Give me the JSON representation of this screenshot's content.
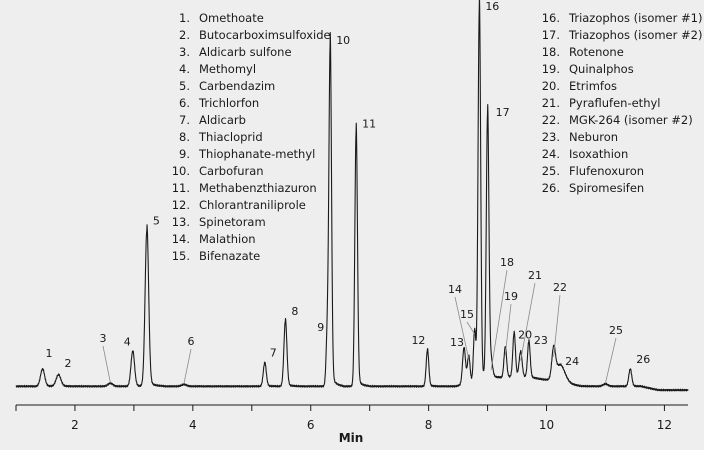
{
  "chart_data": {
    "type": "line",
    "xlabel": "Min",
    "ylabel": "",
    "xlim": [
      1,
      12.4
    ],
    "ylim": [
      0,
      100
    ],
    "x_ticks": [
      2,
      4,
      6,
      8,
      10,
      12
    ],
    "colors": {
      "background": "#eeeeef",
      "trace": "#1a1a1a",
      "axis": "#1a1a1a",
      "leader": "#8a8a8a"
    },
    "baseline": 1.5,
    "peaks": [
      {
        "id": "1",
        "x": 1.45,
        "height": 4.5,
        "width": 0.035
      },
      {
        "id": "2",
        "x": 1.72,
        "height": 3.0,
        "width": 0.04
      },
      {
        "id": "3",
        "x": 2.6,
        "height": 0.8,
        "width": 0.04
      },
      {
        "id": "4",
        "x": 2.98,
        "height": 9.2,
        "width": 0.03
      },
      {
        "id": "5",
        "x": 3.22,
        "height": 41.0,
        "width": 0.03
      },
      {
        "id": "6",
        "x": 3.85,
        "height": 0.5,
        "width": 0.04
      },
      {
        "id": "7",
        "x": 5.22,
        "height": 6.2,
        "width": 0.025
      },
      {
        "id": "8",
        "x": 5.57,
        "height": 17.2,
        "width": 0.025
      },
      {
        "id": "9",
        "x": 6.28,
        "height": 13.0,
        "width": 0.02
      },
      {
        "id": "10",
        "x": 6.33,
        "height": 89.0,
        "width": 0.022
      },
      {
        "id": "11",
        "x": 6.77,
        "height": 67.0,
        "width": 0.022
      },
      {
        "id": "12",
        "x": 7.98,
        "height": 9.5,
        "width": 0.022
      },
      {
        "id": "13",
        "x": 8.6,
        "height": 9.5,
        "width": 0.025
      },
      {
        "id": "14",
        "x": 8.68,
        "height": 7.0,
        "width": 0.022
      },
      {
        "id": "15",
        "x": 8.78,
        "height": 13.5,
        "width": 0.02
      },
      {
        "id": "16",
        "x": 8.86,
        "height": 98.0,
        "width": 0.022
      },
      {
        "id": "17",
        "x": 9.0,
        "height": 69.5,
        "width": 0.022
      },
      {
        "id": "18",
        "x": 9.06,
        "height": 4.0,
        "width": 0.025
      },
      {
        "id": "19",
        "x": 9.3,
        "height": 8.0,
        "width": 0.022
      },
      {
        "id": "20",
        "x": 9.45,
        "height": 11.5,
        "width": 0.022
      },
      {
        "id": "21",
        "x": 9.56,
        "height": 6.5,
        "width": 0.025
      },
      {
        "id": "22",
        "x": 10.12,
        "height": 7.5,
        "width": 0.03
      },
      {
        "id": "23",
        "x": 9.7,
        "height": 9.5,
        "width": 0.022
      },
      {
        "id": "24",
        "x": 10.23,
        "height": 4.5,
        "width": 0.08
      },
      {
        "id": "25",
        "x": 11.0,
        "height": 0.6,
        "width": 0.04
      },
      {
        "id": "26",
        "x": 11.42,
        "height": 4.5,
        "width": 0.025
      }
    ],
    "hump": {
      "start": 8.45,
      "end": 10.6,
      "height": 2.5
    },
    "tail": {
      "from": 11.6,
      "drop": 1.0
    },
    "legend_left": [
      {
        "num": "1.",
        "name": "Omethoate"
      },
      {
        "num": "2.",
        "name": "Butocarboximsulfoxide"
      },
      {
        "num": "3.",
        "name": "Aldicarb sulfone"
      },
      {
        "num": "4.",
        "name": "Methomyl"
      },
      {
        "num": "5.",
        "name": "Carbendazim"
      },
      {
        "num": "6.",
        "name": "Trichlorfon"
      },
      {
        "num": "7.",
        "name": "Aldicarb"
      },
      {
        "num": "8.",
        "name": "Thiacloprid"
      },
      {
        "num": "9.",
        "name": "Thiophanate-methyl"
      },
      {
        "num": "10.",
        "name": "Carbofuran"
      },
      {
        "num": "11.",
        "name": "Methabenzthiazuron"
      },
      {
        "num": "12.",
        "name": "Chlorantraniliprole"
      },
      {
        "num": "13.",
        "name": "Spinetoram"
      },
      {
        "num": "14.",
        "name": "Malathion"
      },
      {
        "num": "15.",
        "name": "Bifenazate"
      }
    ],
    "legend_right": [
      {
        "num": "16.",
        "name": "Triazophos (isomer #1)"
      },
      {
        "num": "17.",
        "name": "Triazophos (isomer #2)"
      },
      {
        "num": "18.",
        "name": "Rotenone"
      },
      {
        "num": "19.",
        "name": "Quinalphos"
      },
      {
        "num": "20.",
        "name": "Etrimfos"
      },
      {
        "num": "21.",
        "name": "Pyraflufen-ethyl"
      },
      {
        "num": "22.",
        "name": "MGK-264 (isomer #2)"
      },
      {
        "num": "23.",
        "name": "Neburon"
      },
      {
        "num": "24.",
        "name": "Isoxathion"
      },
      {
        "num": "25.",
        "name": "Flufenoxuron"
      },
      {
        "num": "26.",
        "name": "Spiromesifen"
      }
    ]
  }
}
